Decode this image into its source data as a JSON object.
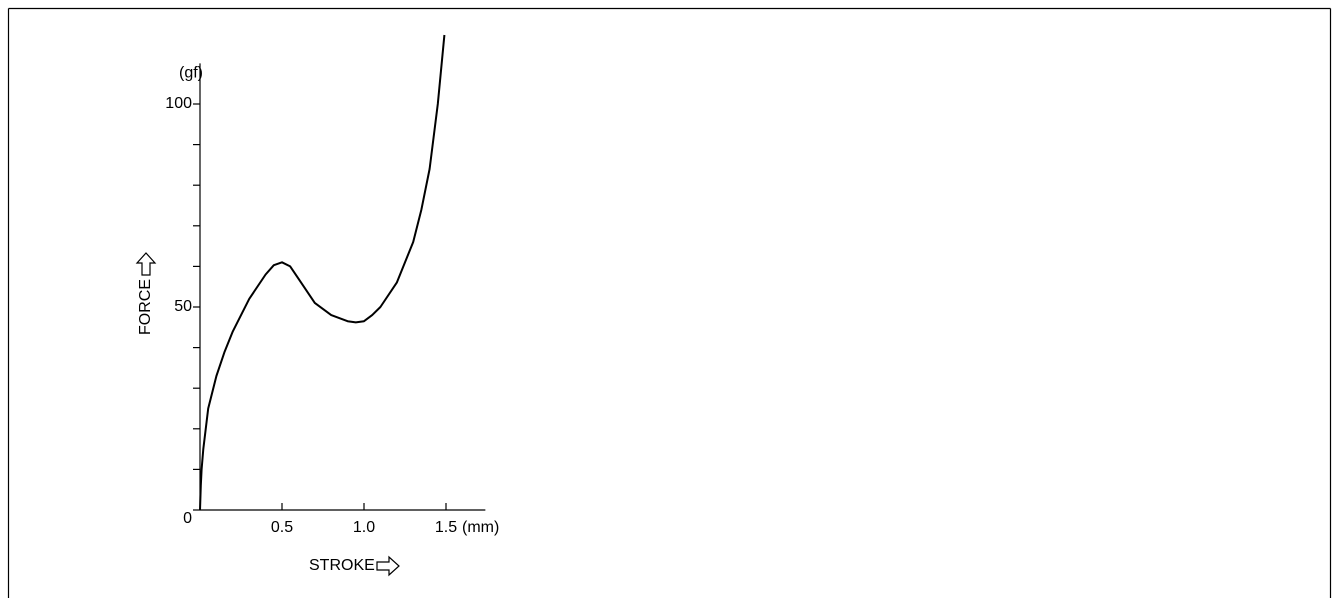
{
  "chart_data": {
    "type": "line",
    "xlabel": "STROKE",
    "ylabel": "FORCE",
    "x_unit": "(mm)",
    "y_unit": "(gf)",
    "xlim": [
      0,
      1.74
    ],
    "ylim": [
      0,
      110
    ],
    "xticks": [
      0.5,
      {
        "value": 1.0,
        "label": "1.0"
      },
      1.5
    ],
    "yticks": [
      0,
      50,
      100
    ],
    "yminorticks": [
      10,
      20,
      30,
      40,
      60,
      70,
      80,
      90
    ],
    "grid": false,
    "series": [
      {
        "color": "#000000",
        "x": [
          0,
          0.005,
          0.01,
          0.02,
          0.05,
          0.1,
          0.15,
          0.2,
          0.3,
          0.4,
          0.45,
          0.5,
          0.55,
          0.6,
          0.7,
          0.8,
          0.9,
          0.95,
          1.0,
          1.05,
          1.1,
          1.2,
          1.3,
          1.35,
          1.4,
          1.45,
          1.49
        ],
        "values": [
          0,
          6,
          10,
          15,
          25,
          33,
          39,
          44,
          52,
          58,
          60.3,
          61,
          60,
          57,
          51,
          48,
          46.5,
          46.2,
          46.5,
          48,
          50,
          56,
          66,
          74,
          84,
          100,
          117
        ]
      }
    ]
  }
}
